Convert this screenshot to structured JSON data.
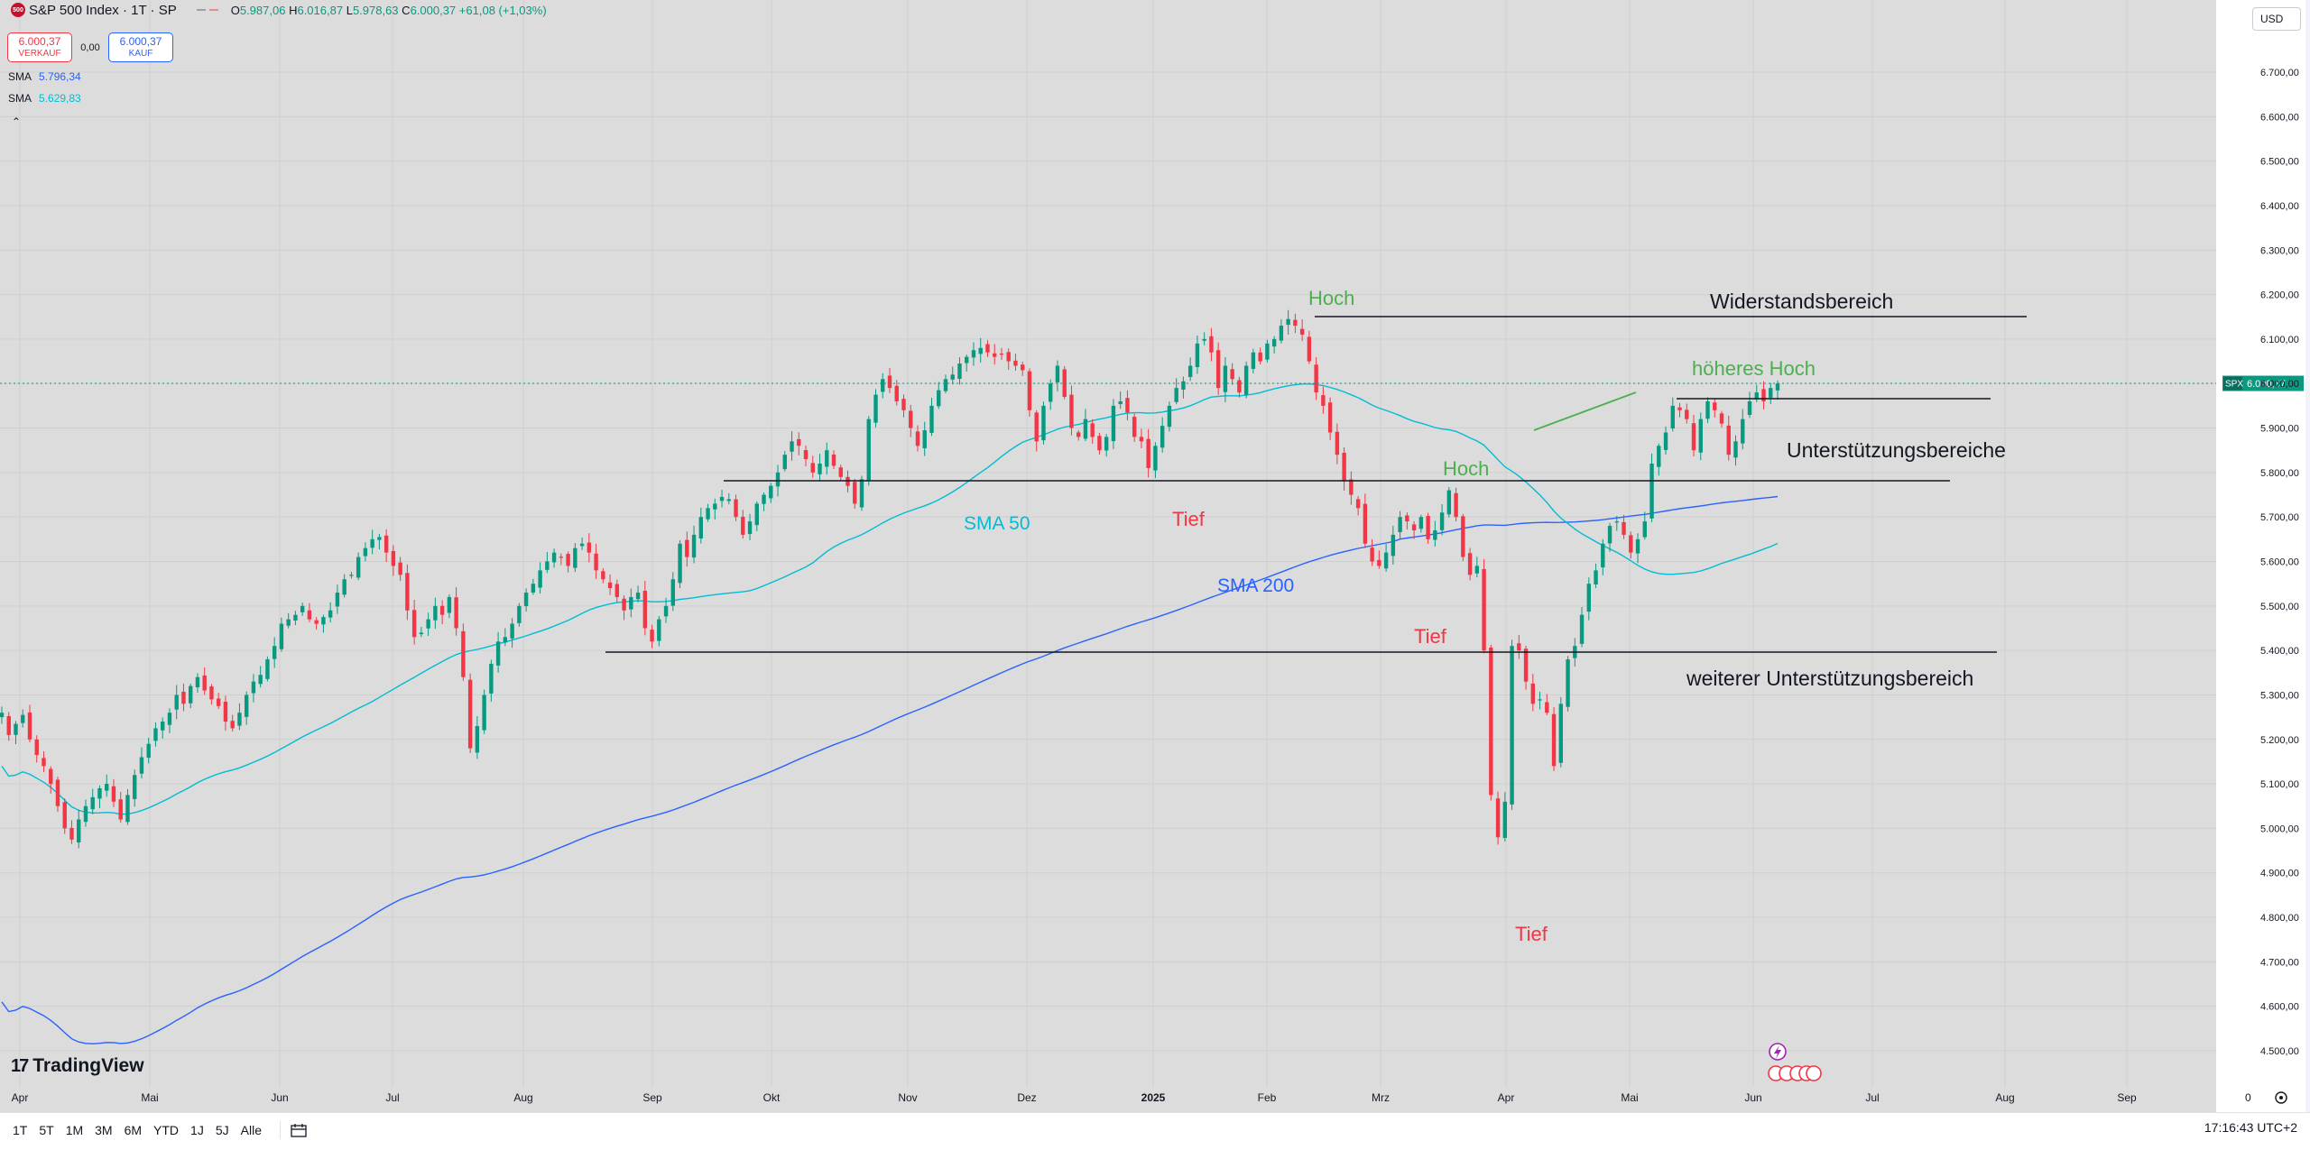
{
  "header": {
    "logo_text": "500",
    "title": "S&P 500 Index · 1T · SP",
    "ohlc": [
      {
        "label": "O",
        "value": "5.987,06"
      },
      {
        "label": "H",
        "value": "6.016,87"
      },
      {
        "label": "L",
        "value": "5.978,63"
      },
      {
        "label": "C",
        "value": "6.000,37"
      },
      {
        "label": "",
        "value": "+61,08 (+1,03%)"
      }
    ]
  },
  "trade": {
    "sell_price": "6.000,37",
    "sell_label": "VERKAUF",
    "spread": "0,00",
    "buy_price": "6.000,37",
    "buy_label": "KAUF"
  },
  "indicators": [
    {
      "name": "SMA",
      "value": "5.796,34"
    },
    {
      "name": "SMA",
      "value": "5.629,83"
    }
  ],
  "currency": "USD",
  "bottom": {
    "timeframes": [
      "1T",
      "5T",
      "1M",
      "3M",
      "6M",
      "YTD",
      "1J",
      "5J",
      "Alle"
    ],
    "time": "17:16:43 UTC+2"
  },
  "brand": "TradingView",
  "chart_data": {
    "type": "candlestick",
    "ylim": [
      4450,
      6760
    ],
    "y_ticks": [
      "4.500,00",
      "4.600,00",
      "4.700,00",
      "4.800,00",
      "4.900,00",
      "5.000,00",
      "5.100,00",
      "5.200,00",
      "5.300,00",
      "5.400,00",
      "5.500,00",
      "5.600,00",
      "5.700,00",
      "5.800,00",
      "5.900,00",
      "6.000,00",
      "6.100,00",
      "6.200,00",
      "6.300,00",
      "6.400,00",
      "6.500,00",
      "6.600,00",
      "6.700,00"
    ],
    "x_ticks": [
      "Apr",
      "Mai",
      "Jun",
      "Jul",
      "Aug",
      "Sep",
      "Okt",
      "Nov",
      "Dez",
      "2025",
      "Feb",
      "Mrz",
      "Apr",
      "Mai",
      "Jun",
      "Jul",
      "Aug",
      "Sep"
    ],
    "last_price": {
      "symbol": "SPX",
      "value": 6000.37,
      "label": "6.000,37"
    },
    "colors": {
      "up": "#089981",
      "down": "#f23645",
      "sma50": "#00bcd4",
      "sma200": "#2962ff",
      "bg": "#dcdcdc"
    },
    "closes": [
      5260,
      5210,
      5235,
      5255,
      5200,
      5165,
      5140,
      5100,
      5050,
      5000,
      4975,
      5020,
      5050,
      5070,
      5090,
      5100,
      5060,
      5020,
      5075,
      5120,
      5160,
      5190,
      5225,
      5240,
      5260,
      5300,
      5280,
      5320,
      5340,
      5310,
      5290,
      5275,
      5240,
      5225,
      5260,
      5300,
      5330,
      5345,
      5380,
      5410,
      5460,
      5470,
      5480,
      5500,
      5470,
      5460,
      5475,
      5490,
      5530,
      5560,
      5570,
      5610,
      5630,
      5650,
      5655,
      5620,
      5590,
      5570,
      5490,
      5430,
      5440,
      5470,
      5500,
      5480,
      5520,
      5450,
      5340,
      5180,
      5230,
      5300,
      5370,
      5420,
      5430,
      5460,
      5500,
      5530,
      5550,
      5580,
      5600,
      5620,
      5610,
      5590,
      5630,
      5640,
      5620,
      5580,
      5560,
      5540,
      5520,
      5490,
      5520,
      5530,
      5450,
      5420,
      5470,
      5500,
      5560,
      5640,
      5610,
      5660,
      5700,
      5720,
      5730,
      5745,
      5740,
      5700,
      5660,
      5690,
      5730,
      5750,
      5770,
      5800,
      5840,
      5870,
      5860,
      5830,
      5800,
      5820,
      5850,
      5815,
      5790,
      5770,
      5730,
      5785,
      5920,
      5975,
      6010,
      5990,
      5960,
      5940,
      5900,
      5860,
      5895,
      5950,
      5985,
      6010,
      6020,
      6045,
      6060,
      6075,
      6080,
      6070,
      6060,
      6065,
      6050,
      6040,
      6030,
      5940,
      5870,
      5950,
      6000,
      6040,
      5970,
      5900,
      5880,
      5920,
      5880,
      5850,
      5880,
      5950,
      5960,
      5935,
      5880,
      5870,
      5810,
      5860,
      5905,
      5950,
      5990,
      6005,
      6040,
      6090,
      6100,
      6070,
      5990,
      6040,
      6010,
      5980,
      6040,
      6070,
      6050,
      6090,
      6100,
      6130,
      6145,
      6130,
      6110,
      6050,
      5980,
      5950,
      5890,
      5840,
      5780,
      5750,
      5720,
      5640,
      5600,
      5590,
      5620,
      5660,
      5700,
      5690,
      5670,
      5700,
      5650,
      5670,
      5710,
      5760,
      5700,
      5610,
      5570,
      5590,
      5400,
      5075,
      4980,
      5060,
      5410,
      5400,
      5330,
      5280,
      5290,
      5260,
      5140,
      5280,
      5380,
      5410,
      5480,
      5550,
      5580,
      5640,
      5680,
      5690,
      5660,
      5620,
      5650,
      5690,
      5820,
      5860,
      5890,
      5950,
      5940,
      5920,
      5850,
      5920,
      5960,
      5940,
      5910,
      5840,
      5870,
      5920,
      5960,
      5980,
      5960,
      5990,
      6000
    ]
  }
}
